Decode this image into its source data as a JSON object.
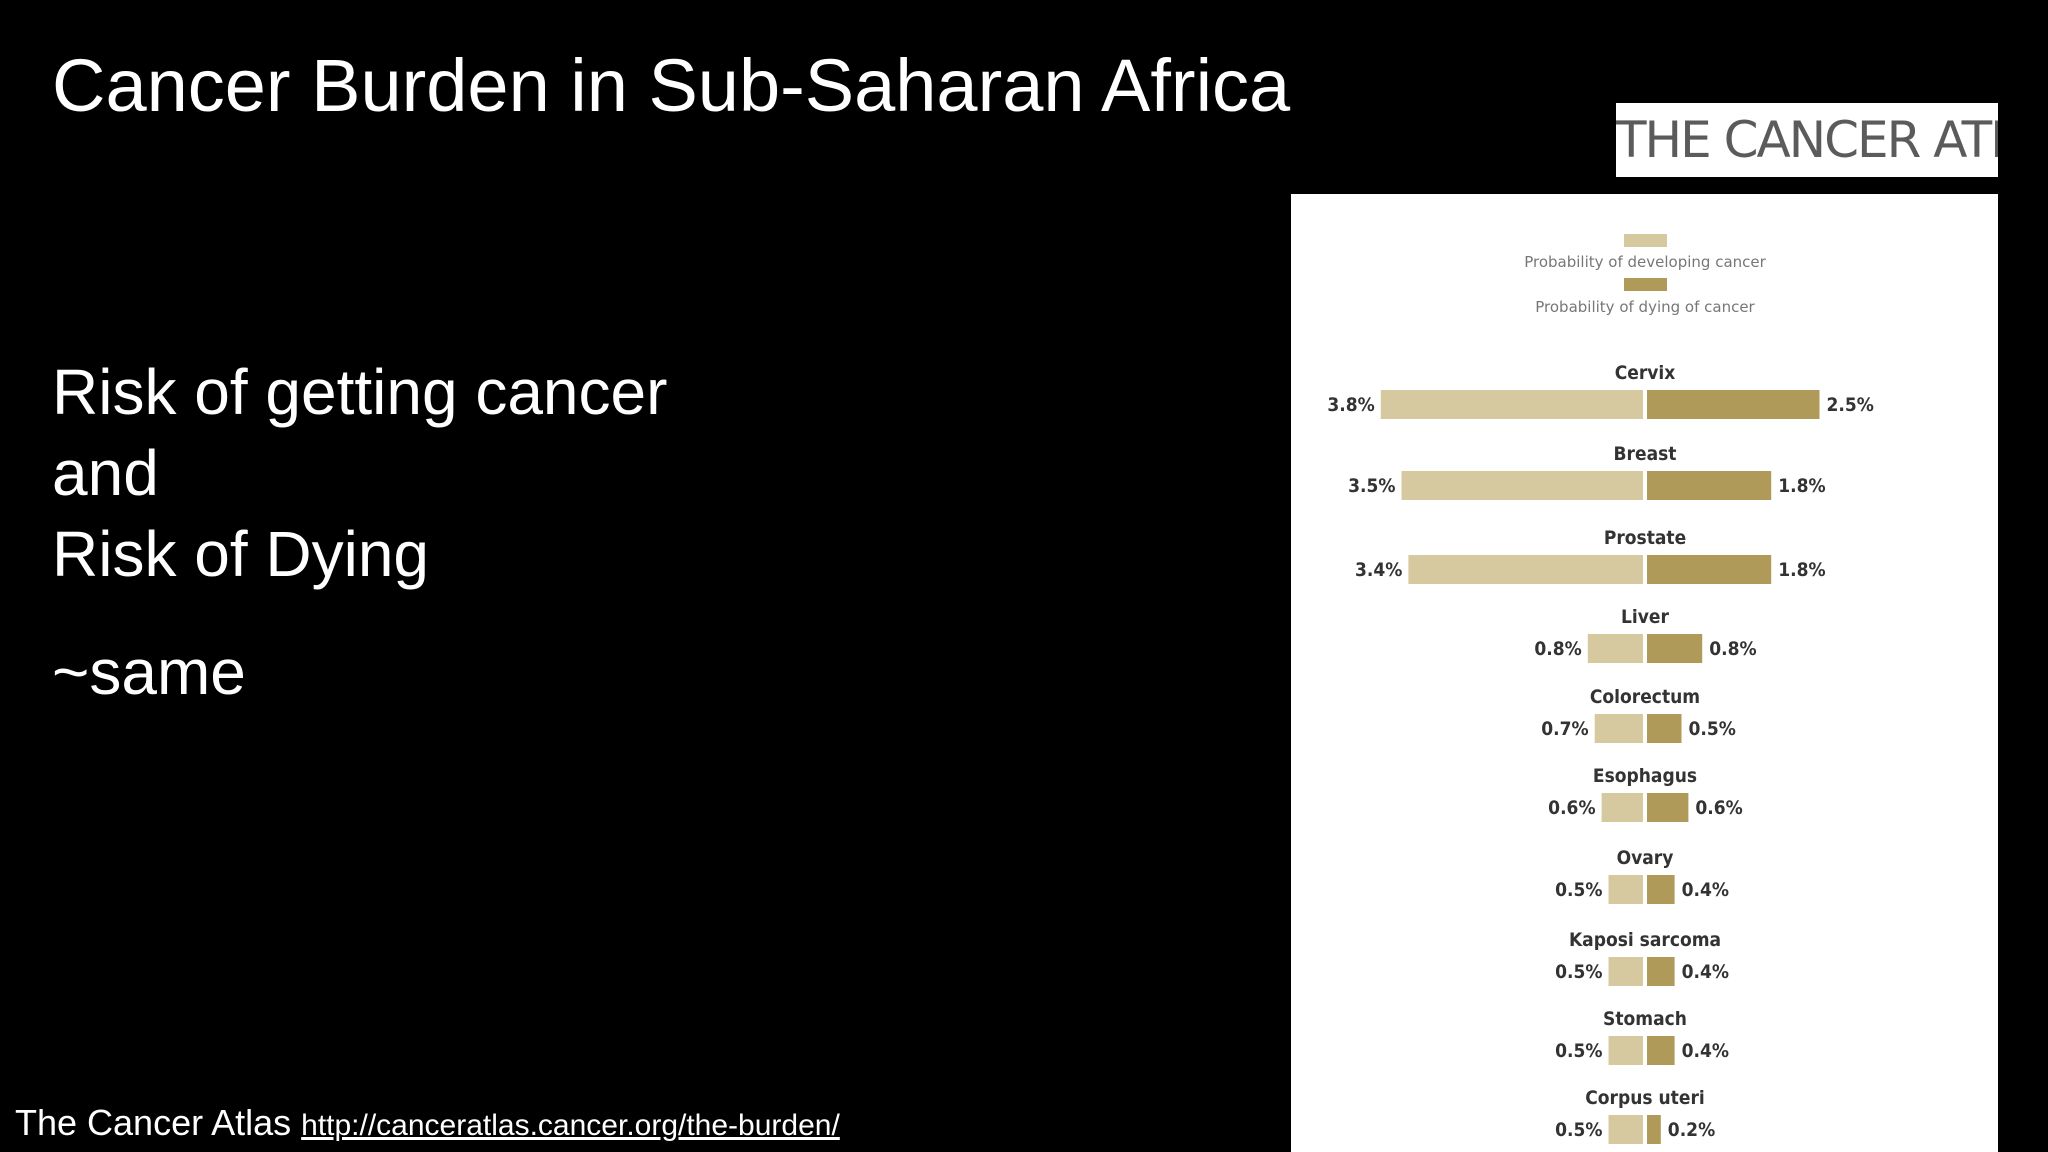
{
  "slide": {
    "title": "Cancer Burden in Sub-Saharan Africa",
    "body_lines": [
      "Risk of getting cancer",
      "and",
      "Risk of Dying"
    ],
    "summary": "~same",
    "footer": {
      "source": "The Cancer Atlas",
      "url": "http://canceratlas.cancer.org/the-burden/"
    },
    "logo_text": "THE CANCER ATLAS"
  },
  "chart_data": {
    "type": "bar",
    "orientation": "horizontal-diverging",
    "unit": "%",
    "categories": [
      "Cervix",
      "Breast",
      "Prostate",
      "Liver",
      "Colorectum",
      "Esophagus",
      "Ovary",
      "Kaposi sarcoma",
      "Stomach",
      "Corpus uteri"
    ],
    "series": [
      {
        "name": "Probability of developing cancer",
        "color": "#d6c9a0",
        "values": [
          3.8,
          3.5,
          3.4,
          0.8,
          0.7,
          0.6,
          0.5,
          0.5,
          0.5,
          0.5
        ],
        "labels": [
          "3.8%",
          "3.5%",
          "3.4%",
          "0.8%",
          "0.7%",
          "0.6%",
          "0.5%",
          "0.5%",
          "0.5%",
          "0.5%"
        ]
      },
      {
        "name": "Probability of dying of cancer",
        "color": "#b09a5a",
        "values": [
          2.5,
          1.8,
          1.8,
          0.8,
          0.5,
          0.6,
          0.4,
          0.4,
          0.4,
          0.2
        ],
        "labels": [
          "2.5%",
          "1.8%",
          "1.8%",
          "0.8%",
          "0.5%",
          "0.6%",
          "0.4%",
          "0.4%",
          "0.4%",
          "0.2%"
        ]
      }
    ],
    "legend": "top-center",
    "grid": false
  }
}
